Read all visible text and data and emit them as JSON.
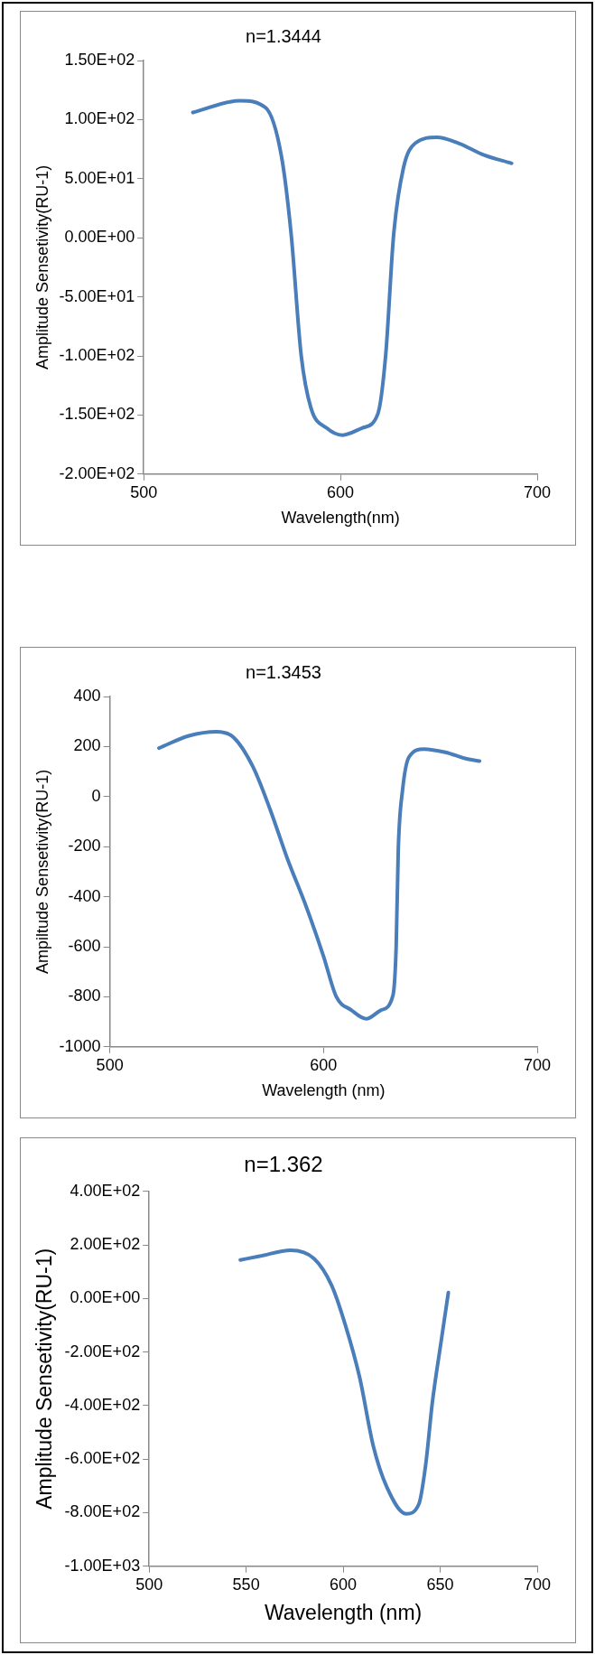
{
  "chart_data": [
    {
      "type": "line",
      "title": "n=1.3444",
      "xlabel": "Wavelength(nm)",
      "ylabel": "Amplitude Sensetivity(RU-1)",
      "legend": false,
      "grid": false,
      "marker": "none",
      "xlim": [
        500,
        700
      ],
      "xticks": [
        500,
        600,
        700
      ],
      "ylim": [
        -200,
        150
      ],
      "yticks": [
        {
          "value": -200,
          "label": "-2.00E+02"
        },
        {
          "value": -150,
          "label": "-1.50E+02"
        },
        {
          "value": -100,
          "label": "-1.00E+02"
        },
        {
          "value": -50,
          "label": "-5.00E+01"
        },
        {
          "value": 0,
          "label": "0.00E+00"
        },
        {
          "value": 50,
          "label": "5.00E+01"
        },
        {
          "value": 100,
          "label": "1.00E+02"
        },
        {
          "value": 150,
          "label": "1.50E+02"
        }
      ],
      "series": [
        {
          "color": "#4a7ebb",
          "x": [
            525,
            549,
            562,
            570,
            575,
            580,
            585,
            593,
            601,
            611,
            619,
            623,
            627,
            632,
            638,
            649,
            660,
            673,
            687
          ],
          "values": [
            106,
            116,
            110,
            69,
            2,
            -99,
            -144,
            -161,
            -167,
            -161,
            -149,
            -99,
            2,
            59,
            80,
            85,
            80,
            70,
            63
          ]
        }
      ]
    },
    {
      "type": "line",
      "title": "n=1.3453",
      "xlabel": "Wavelength (nm)",
      "ylabel": "Ampiltude Sensetivity(RU-1)",
      "legend": false,
      "grid": false,
      "marker": "none",
      "xlim": [
        500,
        700
      ],
      "xticks": [
        500,
        600,
        700
      ],
      "ylim": [
        -1000,
        400
      ],
      "yticks": [
        -1000,
        -800,
        -600,
        -400,
        -200,
        0,
        200,
        400
      ],
      "series": [
        {
          "color": "#4a7ebb",
          "x": [
            523,
            537,
            550,
            558,
            567,
            575,
            583,
            592,
            600,
            606,
            613,
            620,
            627,
            632.5,
            634,
            635,
            637,
            640,
            647,
            657,
            667,
            673
          ],
          "values": [
            194,
            243,
            259,
            236,
            119,
            -51,
            -246,
            -442,
            -638,
            -800,
            -853,
            -888,
            -853,
            -794,
            -598,
            -207,
            27,
            158,
            190,
            177,
            151,
            142
          ]
        }
      ]
    },
    {
      "type": "line",
      "title": "n=1.362",
      "xlabel": "Wavelength (nm)",
      "ylabel": "Amplitude Sensetivity(RU-1)",
      "legend": false,
      "grid": false,
      "marker": "none",
      "xlim": [
        500,
        700
      ],
      "xticks": [
        500,
        550,
        600,
        650,
        700
      ],
      "ylim": [
        -1000,
        400
      ],
      "yticks": [
        {
          "value": -1000,
          "label": "-1.00E+03"
        },
        {
          "value": -800,
          "label": "-8.00E+02"
        },
        {
          "value": -600,
          "label": "-6.00E+02"
        },
        {
          "value": -400,
          "label": "-4.00E+02"
        },
        {
          "value": -200,
          "label": "-2.00E+02"
        },
        {
          "value": 0,
          "label": "0.00E+00"
        },
        {
          "value": 200,
          "label": "2.00E+02"
        },
        {
          "value": 400,
          "label": "4.00E+02"
        }
      ],
      "series": [
        {
          "color": "#4a7ebb",
          "x": [
            547,
            557,
            573,
            585,
            594,
            601,
            608.5,
            615.5,
            622.5,
            632.5,
            639,
            642.5,
            646,
            650.7,
            654.2
          ],
          "values": [
            144,
            158,
            180,
            149,
            50,
            -96,
            -295,
            -550,
            -704,
            -804,
            -768,
            -622,
            -386,
            -150,
            22
          ]
        }
      ]
    }
  ]
}
